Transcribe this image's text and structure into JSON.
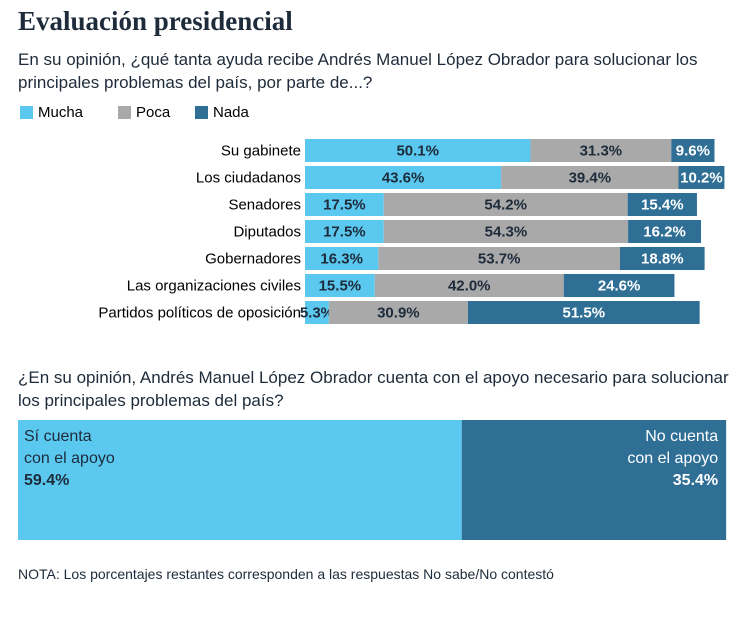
{
  "chart_data": [
    {
      "type": "bar",
      "stacked": true,
      "title": "Evaluación presidencial",
      "subtitle": "En su opinión, ¿qué tanta ayuda recibe Andrés Manuel López Obrador para solucionar los principales problemas del país, por parte de...?",
      "categories": [
        "Su gabinete",
        "Los ciudadanos",
        "Senadores",
        "Diputados",
        "Gobernadores",
        "Las organizaciones civiles",
        "Partidos políticos de oposición"
      ],
      "series": [
        {
          "name": "Mucha",
          "color": "#5bc8f0",
          "values": [
            50.1,
            43.6,
            17.5,
            17.5,
            16.3,
            15.5,
            5.3
          ],
          "value_labels": [
            "50.1%",
            "43.6%",
            "17.5%",
            "17.5%",
            "16.3%",
            "15.5%",
            "5.3%"
          ]
        },
        {
          "name": "Poca",
          "color": "#a9a9a9",
          "values": [
            31.3,
            39.4,
            54.2,
            54.3,
            53.7,
            42.0,
            30.9
          ],
          "value_labels": [
            "31.3%",
            "39.4%",
            "54.2%",
            "54.3%",
            "53.7%",
            "42.0%",
            "30.9%"
          ]
        },
        {
          "name": "Nada",
          "color": "#2f6f96",
          "values": [
            9.6,
            10.2,
            15.4,
            16.2,
            18.8,
            24.6,
            51.5
          ],
          "value_labels": [
            "9.6%",
            "10.2%",
            "15.4%",
            "16.2%",
            "18.8%",
            "24.6%",
            "51.5%"
          ]
        }
      ]
    },
    {
      "type": "bar",
      "stacked": true,
      "title": "¿En su opinión, Andrés Manuel López Obrador cuenta con el apoyo necesario para solucionar los principales problemas del país?",
      "series": [
        {
          "name": "Sí cuenta con el apoyo",
          "color": "#5bc8f0",
          "values": [
            59.4
          ],
          "value_labels": [
            "59.4%"
          ]
        },
        {
          "name": "No cuenta con el apoyo",
          "color": "#2f6f96",
          "values": [
            35.4
          ],
          "value_labels": [
            "35.4%"
          ]
        }
      ]
    }
  ],
  "note": "NOTA: Los porcentajes restantes corresponden a las respuestas No sabe/No contestó"
}
